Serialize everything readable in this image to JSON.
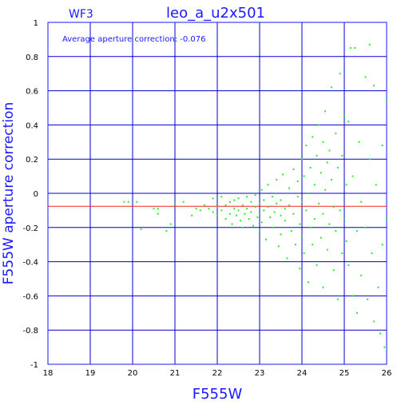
{
  "header": {
    "chip": "WF3",
    "title": "leo_a_u2x501",
    "annotation": "Average aperture correction: -0.076"
  },
  "colors": {
    "frame": "#1a1aff",
    "grid": "#0000cc",
    "mean_line": "#ff2020",
    "points": "#22ee22"
  },
  "chart_data": {
    "type": "scatter",
    "title": "leo_a_u2x501",
    "xlabel": "F555W",
    "ylabel": "F555W aperture correction",
    "xlim": [
      18,
      26
    ],
    "ylim": [
      -1,
      1
    ],
    "xticks": [
      "18",
      "19",
      "20",
      "21",
      "22",
      "23",
      "24",
      "25",
      "26"
    ],
    "yticks": [
      "1",
      "0.8",
      "0.6",
      "0.4",
      "0.2",
      "0",
      "-0.2",
      "-0.4",
      "-0.6",
      "-0.8",
      "-1"
    ],
    "grid": true,
    "mean_correction": -0.076,
    "series": [
      {
        "points": [
          [
            19.8,
            -0.05
          ],
          [
            19.9,
            -0.05
          ],
          [
            20.1,
            -0.05
          ],
          [
            20.2,
            -0.21
          ],
          [
            20.5,
            -0.09
          ],
          [
            20.6,
            -0.12
          ],
          [
            20.6,
            -0.09
          ],
          [
            20.8,
            -0.22
          ],
          [
            20.9,
            -0.18
          ],
          [
            21.0,
            -0.06
          ],
          [
            21.2,
            -0.05
          ],
          [
            21.4,
            -0.13
          ],
          [
            21.5,
            -0.09
          ],
          [
            21.6,
            -0.1
          ],
          [
            21.7,
            -0.07
          ],
          [
            21.8,
            -0.09
          ],
          [
            21.9,
            -0.11
          ],
          [
            21.9,
            -0.03
          ],
          [
            22.0,
            -0.08
          ],
          [
            22.0,
            -0.13
          ],
          [
            22.1,
            -0.02
          ],
          [
            22.1,
            -0.1
          ],
          [
            22.2,
            -0.07
          ],
          [
            22.2,
            -0.15
          ],
          [
            22.3,
            -0.05
          ],
          [
            22.3,
            -0.12
          ],
          [
            22.35,
            -0.18
          ],
          [
            22.4,
            -0.04
          ],
          [
            22.4,
            -0.09
          ],
          [
            22.45,
            -0.13
          ],
          [
            22.5,
            -0.1
          ],
          [
            22.5,
            -0.03
          ],
          [
            22.55,
            -0.16
          ],
          [
            22.6,
            -0.07
          ],
          [
            22.6,
            -0.2
          ],
          [
            22.65,
            -0.12
          ],
          [
            22.7,
            -0.02
          ],
          [
            22.7,
            -0.09
          ],
          [
            22.75,
            -0.15
          ],
          [
            22.8,
            -0.05
          ],
          [
            22.8,
            -0.11
          ],
          [
            22.85,
            -0.19
          ],
          [
            22.9,
            -0.01
          ],
          [
            22.9,
            -0.08
          ],
          [
            22.95,
            -0.14
          ],
          [
            23.0,
            -0.06
          ],
          [
            23.0,
            -0.12
          ],
          [
            23.0,
            -0.22
          ],
          [
            23.05,
            0.02
          ],
          [
            23.05,
            -0.17
          ],
          [
            23.1,
            -0.04
          ],
          [
            23.1,
            -0.1
          ],
          [
            23.15,
            -0.27
          ],
          [
            23.2,
            -0.08
          ],
          [
            23.2,
            0.05
          ],
          [
            23.25,
            -0.14
          ],
          [
            23.3,
            -0.02
          ],
          [
            23.3,
            -0.2
          ],
          [
            23.35,
            -0.11
          ],
          [
            23.4,
            -0.06
          ],
          [
            23.4,
            0.08
          ],
          [
            23.45,
            -0.31
          ],
          [
            23.5,
            -0.13
          ],
          [
            23.5,
            -0.04
          ],
          [
            23.5,
            -0.24
          ],
          [
            23.55,
            0.11
          ],
          [
            23.6,
            -0.09
          ],
          [
            23.6,
            -0.16
          ],
          [
            23.65,
            -0.38
          ],
          [
            23.7,
            0.03
          ],
          [
            23.7,
            -0.07
          ],
          [
            23.75,
            -0.22
          ],
          [
            23.8,
            0.14
          ],
          [
            23.8,
            -0.12
          ],
          [
            23.85,
            -0.3
          ],
          [
            23.9,
            -0.02
          ],
          [
            23.9,
            0.07
          ],
          [
            23.95,
            -0.18
          ],
          [
            23.95,
            -0.44
          ],
          [
            24.0,
            0.2
          ],
          [
            24.0,
            -0.05
          ],
          [
            24.0,
            -0.25
          ],
          [
            24.05,
            0.1
          ],
          [
            24.05,
            -0.35
          ],
          [
            24.1,
            0.28
          ],
          [
            24.1,
            -0.1
          ],
          [
            24.15,
            0.0
          ],
          [
            24.15,
            -0.52
          ],
          [
            24.2,
            0.15
          ],
          [
            24.2,
            -0.2
          ],
          [
            24.25,
            0.33
          ],
          [
            24.25,
            -0.3
          ],
          [
            24.3,
            0.05
          ],
          [
            24.3,
            -0.15
          ],
          [
            24.35,
            0.22
          ],
          [
            24.35,
            -0.42
          ],
          [
            24.4,
            0.4
          ],
          [
            24.4,
            -0.06
          ],
          [
            24.45,
            0.12
          ],
          [
            24.45,
            -0.26
          ],
          [
            24.5,
            0.3
          ],
          [
            24.5,
            -0.12
          ],
          [
            24.5,
            -0.55
          ],
          [
            24.55,
            0.48
          ],
          [
            24.55,
            0.02
          ],
          [
            24.6,
            0.18
          ],
          [
            24.6,
            -0.33
          ],
          [
            24.65,
            0.25
          ],
          [
            24.65,
            -0.18
          ],
          [
            24.7,
            0.62
          ],
          [
            24.7,
            0.08
          ],
          [
            24.75,
            -0.08
          ],
          [
            24.75,
            -0.45
          ],
          [
            24.8,
            0.35
          ],
          [
            24.8,
            -0.22
          ],
          [
            24.85,
            0.15
          ],
          [
            24.85,
            -0.62
          ],
          [
            24.9,
            0.7
          ],
          [
            24.9,
            -0.1
          ],
          [
            24.95,
            0.22
          ],
          [
            24.95,
            -0.35
          ],
          [
            25.0,
            0.45
          ],
          [
            25.0,
            -0.15
          ],
          [
            25.05,
            -0.28
          ],
          [
            25.05,
            0.05
          ],
          [
            25.1,
            0.42
          ],
          [
            25.1,
            -0.42
          ],
          [
            25.15,
            0.85
          ],
          [
            25.2,
            0.1
          ],
          [
            25.2,
            -0.6
          ],
          [
            25.25,
            0.85
          ],
          [
            25.3,
            -0.22
          ],
          [
            25.3,
            -0.7
          ],
          [
            25.35,
            0.3
          ],
          [
            25.4,
            -0.05
          ],
          [
            25.4,
            -0.48
          ],
          [
            25.5,
            0.68
          ],
          [
            25.5,
            -0.2
          ],
          [
            25.55,
            -0.62
          ],
          [
            25.6,
            0.2
          ],
          [
            25.6,
            0.87
          ],
          [
            25.65,
            -0.35
          ],
          [
            25.7,
            0.63
          ],
          [
            25.7,
            -0.75
          ],
          [
            25.75,
            0.05
          ],
          [
            25.8,
            -0.55
          ],
          [
            25.85,
            -0.82
          ],
          [
            25.9,
            0.28
          ],
          [
            25.9,
            -0.3
          ],
          [
            25.95,
            -0.9
          ],
          [
            26.0,
            0.54
          ],
          [
            26.0,
            -0.15
          ]
        ]
      }
    ]
  }
}
